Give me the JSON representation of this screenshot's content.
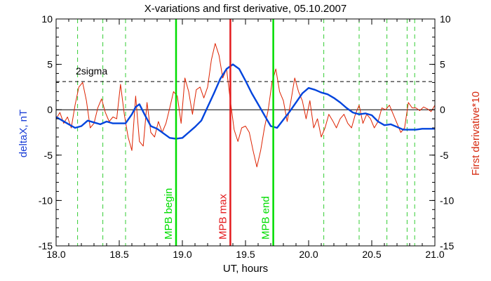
{
  "chart_data": {
    "type": "line",
    "title": "X-variations and first derivative, 05.10.2007",
    "xlabel": "UT, hours",
    "ylabel_left": "deltaX, nT",
    "ylabel_right": "First derivative*10",
    "xlim": [
      18.0,
      21.0
    ],
    "ylim": [
      -15,
      10
    ],
    "xticks": [
      "18.0",
      "18.5",
      "19.0",
      "19.5",
      "20.0",
      "20.5",
      "21.0"
    ],
    "yticks_left": [
      "-15",
      "-10",
      "-5",
      "0",
      "5",
      "10"
    ],
    "yticks_right": [
      "-15",
      "-10",
      "-5",
      "0",
      "5",
      "10"
    ],
    "sigma_label": "2sigma",
    "sigma_level": 3.1,
    "zero_level": 0,
    "colors": {
      "deltaX": "#0044dd",
      "derivative": "#dd2200",
      "mpb_max": "#e31a1c",
      "mpb_edge": "#00dd00",
      "dashed": "#33cc33"
    },
    "markers": [
      {
        "label": "MPB begin",
        "x": 18.95,
        "kind": "edge"
      },
      {
        "label": "MPB max",
        "x": 19.38,
        "kind": "max"
      },
      {
        "label": "MPB end",
        "x": 19.72,
        "kind": "edge"
      }
    ],
    "dashed_lines_x": [
      18.17,
      18.37,
      18.55,
      20.12,
      20.4,
      20.62,
      20.78,
      20.84
    ],
    "series": [
      {
        "name": "deltaX",
        "x": [
          18.0,
          18.05,
          18.1,
          18.15,
          18.2,
          18.25,
          18.3,
          18.35,
          18.4,
          18.45,
          18.5,
          18.55,
          18.6,
          18.63,
          18.66,
          18.7,
          18.75,
          18.8,
          18.85,
          18.9,
          18.95,
          19.0,
          19.05,
          19.1,
          19.15,
          19.2,
          19.25,
          19.3,
          19.35,
          19.4,
          19.45,
          19.5,
          19.55,
          19.6,
          19.65,
          19.7,
          19.75,
          19.8,
          19.85,
          19.9,
          19.95,
          20.0,
          20.05,
          20.1,
          20.15,
          20.2,
          20.25,
          20.3,
          20.35,
          20.4,
          20.45,
          20.5,
          20.55,
          20.6,
          20.65,
          20.7,
          20.75,
          20.8,
          20.85,
          20.9,
          21.0
        ],
        "values": [
          -0.8,
          -1.2,
          -1.6,
          -2.0,
          -1.8,
          -1.2,
          -1.4,
          -1.6,
          -1.3,
          -1.5,
          -1.5,
          -1.5,
          -0.5,
          0.3,
          0.6,
          -0.5,
          -1.8,
          -2.1,
          -2.6,
          -3.1,
          -3.2,
          -3.1,
          -2.5,
          -1.9,
          -1.2,
          0.3,
          1.8,
          3.4,
          4.5,
          5.0,
          4.5,
          3.2,
          1.8,
          0.6,
          -0.6,
          -1.8,
          -2.0,
          -1.1,
          -0.2,
          0.8,
          1.8,
          2.4,
          2.2,
          1.9,
          1.7,
          1.3,
          0.8,
          0.2,
          -0.3,
          -0.5,
          -0.4,
          -0.6,
          -1.3,
          -1.7,
          -1.6,
          -1.9,
          -2.2,
          -2.2,
          -2.2,
          -2.1,
          -2.1
        ]
      },
      {
        "name": "derivative",
        "x": [
          18.0,
          18.03,
          18.06,
          18.09,
          18.12,
          18.15,
          18.18,
          18.21,
          18.24,
          18.27,
          18.3,
          18.33,
          18.36,
          18.39,
          18.42,
          18.45,
          18.48,
          18.51,
          18.54,
          18.57,
          18.6,
          18.63,
          18.66,
          18.69,
          18.72,
          18.75,
          18.78,
          18.81,
          18.84,
          18.87,
          18.9,
          18.93,
          18.96,
          18.99,
          19.02,
          19.05,
          19.08,
          19.11,
          19.14,
          19.17,
          19.2,
          19.23,
          19.26,
          19.29,
          19.32,
          19.35,
          19.38,
          19.41,
          19.44,
          19.47,
          19.5,
          19.53,
          19.56,
          19.59,
          19.62,
          19.65,
          19.68,
          19.71,
          19.74,
          19.77,
          19.8,
          19.83,
          19.86,
          19.89,
          19.92,
          19.95,
          19.98,
          20.01,
          20.04,
          20.07,
          20.1,
          20.13,
          20.16,
          20.19,
          20.22,
          20.25,
          20.28,
          20.31,
          20.34,
          20.37,
          20.4,
          20.43,
          20.46,
          20.49,
          20.52,
          20.55,
          20.58,
          20.61,
          20.64,
          20.67,
          20.7,
          20.73,
          20.76,
          20.79,
          20.82,
          20.85,
          20.88,
          20.91,
          20.94,
          20.97,
          21.0
        ],
        "values": [
          -1.0,
          -0.3,
          -1.5,
          -0.8,
          -2.0,
          0.5,
          2.5,
          3.0,
          1.0,
          -2.0,
          -1.5,
          0.2,
          1.2,
          -0.3,
          -1.3,
          -0.8,
          -1.0,
          2.8,
          -0.5,
          -3.0,
          -4.5,
          1.5,
          -3.5,
          -4.0,
          0.8,
          -2.5,
          -3.0,
          -1.3,
          -2.5,
          -1.5,
          0.2,
          2.0,
          1.5,
          -1.5,
          3.5,
          2.0,
          -0.5,
          2.2,
          2.5,
          1.3,
          2.5,
          5.5,
          7.3,
          6.0,
          3.5,
          4.5,
          1.0,
          -2.2,
          -3.5,
          -2.0,
          -1.8,
          -2.5,
          -4.5,
          -6.3,
          -4.5,
          -2.0,
          0.0,
          3.0,
          4.5,
          2.0,
          1.0,
          -1.3,
          1.0,
          3.5,
          2.0,
          1.0,
          -1.0,
          1.0,
          -2.0,
          -1.0,
          -3.0,
          -2.0,
          -0.5,
          -1.2,
          -2.0,
          -1.0,
          -0.5,
          -1.5,
          -2.0,
          -0.5,
          0.5,
          -1.5,
          -0.5,
          -1.0,
          -2.0,
          -1.3,
          0.2,
          0.0,
          0.5,
          -0.5,
          -1.5,
          -2.5,
          -2.0,
          0.8,
          0.2,
          0.2,
          -0.1,
          0.3,
          0.1,
          -0.2,
          0.5
        ]
      }
    ]
  }
}
